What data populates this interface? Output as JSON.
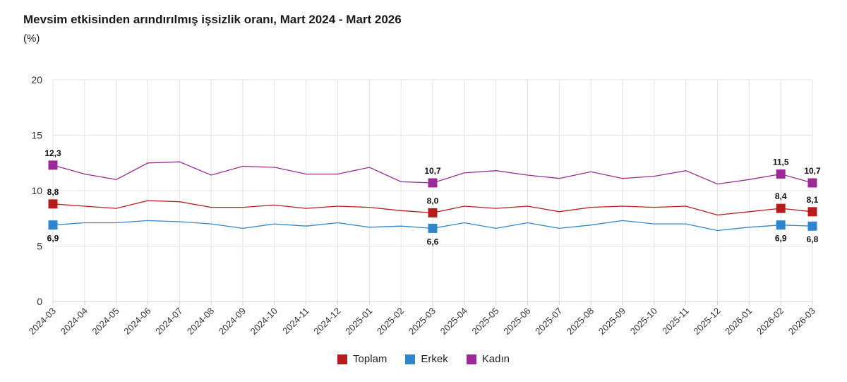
{
  "chart_data": {
    "type": "line",
    "title": "Mevsim etkisinden arındırılmış işsizlik oranı, Mart 2024 - Mart 2026",
    "subtitle": "(%)",
    "ylim": [
      0,
      20
    ],
    "yticks": [
      0,
      5,
      10,
      15,
      20
    ],
    "grid": true,
    "legend_position": "bottom-center",
    "categories": [
      "2024-03",
      "2024-04",
      "2024-05",
      "2024-06",
      "2024-07",
      "2024-08",
      "2024-09",
      "2024-10",
      "2024-11",
      "2024-12",
      "2025-01",
      "2025-02",
      "2025-03",
      "2025-04",
      "2025-05",
      "2025-06",
      "2025-07",
      "2025-08",
      "2025-09",
      "2025-10",
      "2025-11",
      "2025-12",
      "2026-01",
      "2026-02",
      "2026-03"
    ],
    "series": [
      {
        "name": "Toplam",
        "color": "#b71c1c",
        "values": [
          8.8,
          8.6,
          8.4,
          9.1,
          9.0,
          8.5,
          8.5,
          8.7,
          8.4,
          8.6,
          8.5,
          8.2,
          8.0,
          8.6,
          8.4,
          8.6,
          8.1,
          8.5,
          8.6,
          8.5,
          8.6,
          7.8,
          8.1,
          8.4,
          8.1
        ]
      },
      {
        "name": "Erkek",
        "color": "#2f86cc",
        "values": [
          6.9,
          7.1,
          7.1,
          7.3,
          7.2,
          7.0,
          6.6,
          7.0,
          6.8,
          7.1,
          6.7,
          6.8,
          6.6,
          7.1,
          6.6,
          7.1,
          6.6,
          6.9,
          7.3,
          7.0,
          7.0,
          6.4,
          6.7,
          6.9,
          6.8
        ]
      },
      {
        "name": "Kadın",
        "color": "#9c2a95",
        "values": [
          12.3,
          11.5,
          11.0,
          12.5,
          12.6,
          11.4,
          12.2,
          12.1,
          11.5,
          11.5,
          12.1,
          10.8,
          10.7,
          11.6,
          11.8,
          11.4,
          11.1,
          11.7,
          11.1,
          11.3,
          11.8,
          10.6,
          11.0,
          11.5,
          10.7
        ]
      }
    ],
    "highlight_indices": [
      0,
      12,
      23,
      24
    ],
    "data_labels": {
      "Toplam": [
        "8,8",
        "8,0",
        "8,4",
        "8,1"
      ],
      "Erkek": [
        "6,9",
        "6,6",
        "6,9",
        "6,8"
      ],
      "Kadın": [
        "12,3",
        "10,7",
        "11,5",
        "10,7"
      ]
    }
  }
}
